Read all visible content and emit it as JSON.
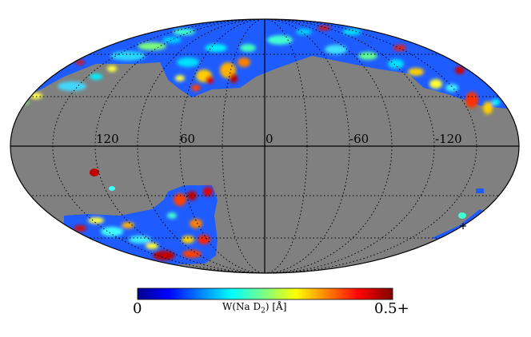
{
  "colorbar": {
    "min_label": "0",
    "max_label": "0.5+",
    "title": "W(Na D",
    "title_sub": "2",
    "title_unit": ") [Å]",
    "colormap": "jet",
    "range": [
      0,
      0.5
    ]
  },
  "map": {
    "projection": "Mollweide",
    "background_color": "#808080",
    "graticule": "dotted",
    "longitude_labels": [
      "120",
      "60",
      "0",
      "-60",
      "-120"
    ]
  }
}
